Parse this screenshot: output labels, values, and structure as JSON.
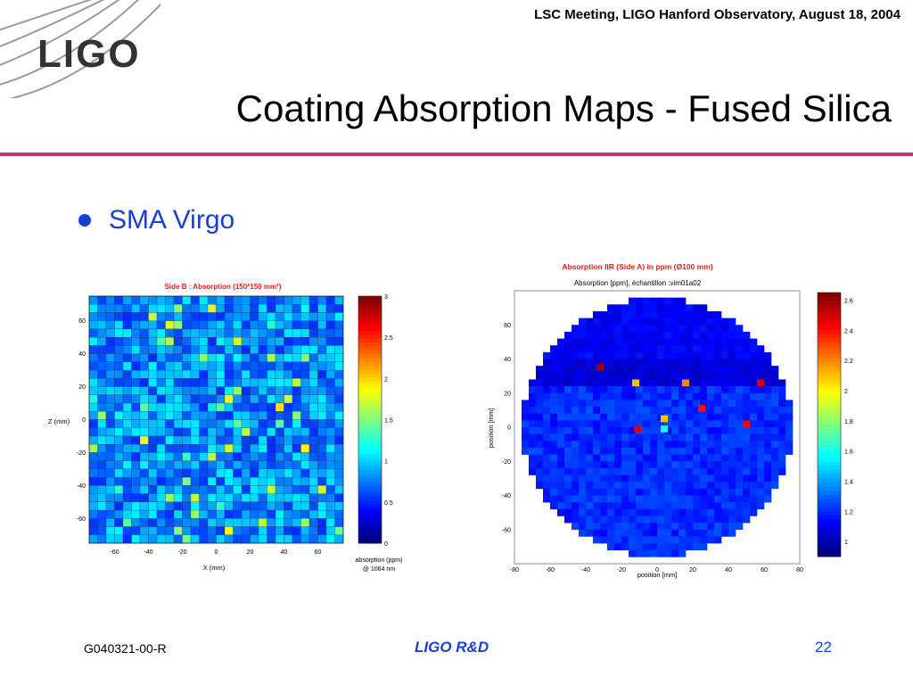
{
  "header": {
    "meeting": "LSC Meeting, LIGO Hanford Observatory, August 18, 2004"
  },
  "logo": {
    "text": "LIGO"
  },
  "slide": {
    "title": "Coating Absorption Maps - Fused Silica",
    "bullet": "SMA Virgo"
  },
  "footer": {
    "doc_id": "G040321-00-R",
    "center": "LIGO R&D",
    "page": "22"
  },
  "colors": {
    "accent_rule": "#c0327a",
    "bullet_blue": "#1a3fd0",
    "plot_title_red": "#e0201c"
  },
  "chart_data": [
    {
      "type": "heatmap",
      "title": "Side B : Absorption (150*150 mm²)",
      "xlabel": "X (mm)",
      "ylabel": "Z (mm)",
      "xlim": [
        -75,
        75
      ],
      "ylim": [
        -75,
        75
      ],
      "x_ticks": [
        "-60",
        "-40",
        "-20",
        "0",
        "20",
        "40",
        "60"
      ],
      "y_ticks": [
        "60",
        "40",
        "20",
        "0",
        "-20",
        "-40",
        "-60"
      ],
      "grid_size": 30,
      "baseline": 0.8,
      "colorbar": {
        "min": 0,
        "max": 3,
        "ticks": [
          "3",
          "2.5",
          "2",
          "1.5",
          "1",
          "0.5",
          "0"
        ],
        "label_line1": "absorption (ppm)",
        "label_line2": "@ 1064 nm"
      },
      "grid": true,
      "legend": "none"
    },
    {
      "type": "heatmap",
      "title": "Absorption IIR (Side A) in ppm (Ø100 mm)",
      "subtitle": "Absorption [ppm], échantillon :vim01a02",
      "xlabel": "position [mm]",
      "ylabel": "position [mm]",
      "xlim": [
        -80,
        80
      ],
      "ylim": [
        -80,
        80
      ],
      "x_ticks": [
        "-80",
        "-60",
        "-40",
        "-20",
        "0",
        "20",
        "40",
        "60",
        "80"
      ],
      "y_ticks": [
        "60",
        "40",
        "20",
        "0",
        "-20",
        "-40",
        "-60"
      ],
      "aperture_radius_mm": 76,
      "colorbar": {
        "min": 0.9,
        "max": 2.65,
        "ticks": [
          "2.6",
          "2.4",
          "2.2",
          "2",
          "1.8",
          "1.6",
          "1.4",
          "1.2",
          "1"
        ]
      },
      "hot_spots": [
        {
          "x": -32,
          "y": 35,
          "value": 2.6
        },
        {
          "x": -12,
          "y": 26,
          "value": 2.1
        },
        {
          "x": 16,
          "y": 26,
          "value": 2.2
        },
        {
          "x": 58,
          "y": 26,
          "value": 2.5
        },
        {
          "x": 25,
          "y": 11,
          "value": 2.4
        },
        {
          "x": 4,
          "y": 5,
          "value": 2.1
        },
        {
          "x": -11,
          "y": -1,
          "value": 2.5
        },
        {
          "x": 4,
          "y": -1,
          "value": 1.6
        },
        {
          "x": 50,
          "y": 2,
          "value": 2.45
        }
      ],
      "grid": false,
      "legend": "none"
    }
  ]
}
